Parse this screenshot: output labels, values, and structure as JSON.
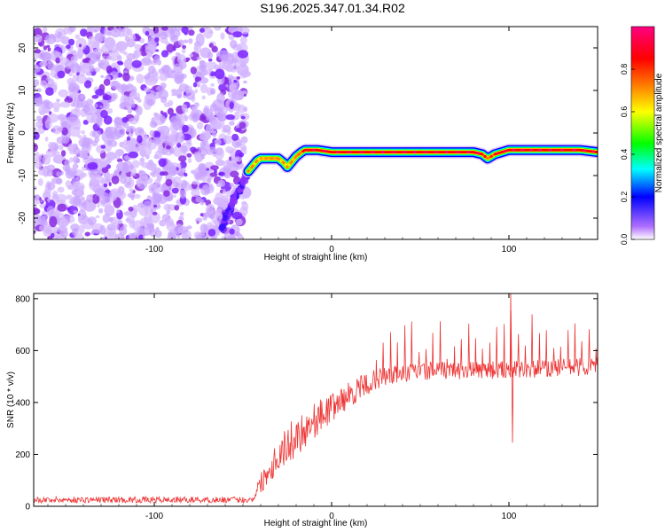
{
  "title": "S196.2025.347.01.34.R02",
  "chart_data": [
    {
      "type": "heatmap",
      "xlabel": "Height of straight line (km)",
      "ylabel": "Frequency (Hz)",
      "xlim": [
        -168,
        150
      ],
      "ylim": [
        -25,
        25
      ],
      "xticks": [
        -100,
        0,
        100
      ],
      "yticks": [
        -20,
        -10,
        0,
        10,
        20
      ],
      "noise_region_x": [
        -168,
        -48
      ],
      "ridge": {
        "x": [
          -47,
          -45,
          -42,
          -40,
          -37,
          -34,
          -30,
          -27,
          -25,
          -23,
          -20,
          -17,
          -15,
          -12,
          -8,
          0,
          20,
          50,
          80,
          85,
          88,
          92,
          96,
          100,
          105,
          120,
          140,
          150
        ],
        "frequency": [
          -9,
          -8,
          -6.5,
          -6,
          -6,
          -6,
          -6,
          -7,
          -8,
          -7,
          -5.5,
          -4.5,
          -4,
          -4,
          -4,
          -4.5,
          -4.5,
          -4.5,
          -4.5,
          -5,
          -6,
          -5,
          -4.5,
          -4,
          -4,
          -4,
          -4,
          -4.5
        ],
        "amplitude": [
          0.45,
          0.5,
          0.55,
          0.6,
          0.6,
          0.65,
          0.6,
          0.55,
          0.5,
          0.55,
          0.65,
          0.75,
          0.85,
          0.9,
          0.95,
          0.97,
          0.97,
          0.97,
          0.97,
          0.9,
          0.7,
          0.85,
          0.9,
          0.95,
          0.95,
          0.95,
          0.95,
          0.9
        ]
      },
      "colorbar": {
        "label": "Normalized spectral amplitude",
        "range": [
          0,
          1
        ],
        "ticks": [
          "0.0",
          "0.2",
          "0.4",
          "0.6",
          "0.8"
        ],
        "colors": [
          "#ffffff",
          "#b070ff",
          "#0000ff",
          "#00ffff",
          "#00ff00",
          "#ffff00",
          "#ff8000",
          "#ff0000",
          "#ff0080"
        ]
      }
    },
    {
      "type": "line",
      "xlabel": "Height of straight line (km)",
      "ylabel": "SNR (10 * v/v)",
      "xlim": [
        -168,
        150
      ],
      "ylim": [
        0,
        820
      ],
      "xticks": [
        -100,
        0,
        100
      ],
      "yticks": [
        0,
        200,
        400,
        600,
        800
      ],
      "color": "#ee3333",
      "envelope": {
        "x": [
          -168,
          -45,
          -40,
          -30,
          -20,
          -10,
          0,
          10,
          20,
          30,
          50,
          80,
          100,
          150
        ],
        "snr": [
          25,
          25,
          90,
          200,
          270,
          330,
          380,
          430,
          470,
          500,
          520,
          525,
          525,
          540
        ],
        "noise": [
          12,
          12,
          40,
          70,
          80,
          70,
          55,
          50,
          45,
          40,
          35,
          35,
          35,
          35
        ]
      },
      "spikes": {
        "start": 25,
        "spacing": 4,
        "height_min": 60,
        "height_max": 200
      },
      "notable_points": [
        {
          "x": 101,
          "snr": 820
        },
        {
          "x": 102,
          "snr": 245
        }
      ]
    }
  ]
}
